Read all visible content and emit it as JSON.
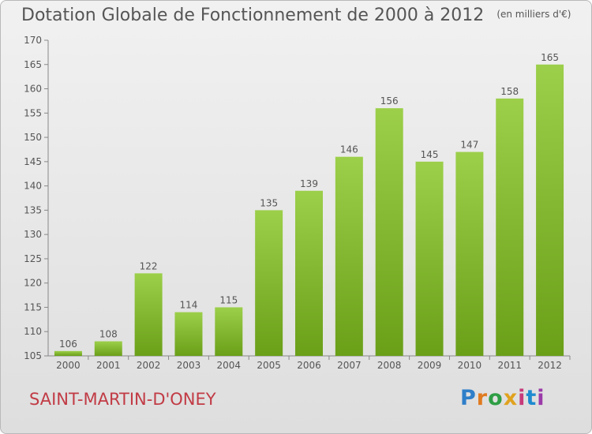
{
  "title": "Dotation Globale de Fonctionnement de 2000 à 2012",
  "unit_note": "(en milliers d'€)",
  "commune": "SAINT-MARTIN-D'ONEY",
  "brand": {
    "letters": [
      "P",
      "r",
      "o",
      "x",
      "i",
      "t",
      "i"
    ],
    "colors": [
      "#2f7fc9",
      "#e07b20",
      "#2e9e45",
      "#e0a21e",
      "#c73a7a",
      "#1f8bd0",
      "#9b3aa9"
    ]
  },
  "colors": {
    "bar_top": "#9ccf4a",
    "bar_bottom": "#6a9f18",
    "text": "#555555"
  },
  "chart_data": {
    "type": "bar",
    "title": "Dotation Globale de Fonctionnement de 2000 à 2012",
    "categories": [
      "2000",
      "2001",
      "2002",
      "2003",
      "2004",
      "2005",
      "2006",
      "2007",
      "2008",
      "2009",
      "2010",
      "2011",
      "2012"
    ],
    "values": [
      106,
      108,
      122,
      114,
      115,
      135,
      139,
      146,
      156,
      145,
      147,
      158,
      165
    ],
    "ylim": [
      105,
      170
    ],
    "yticks": [
      105,
      110,
      115,
      120,
      125,
      130,
      135,
      140,
      145,
      150,
      155,
      160,
      165,
      170
    ],
    "grid": false,
    "legend": "none"
  }
}
